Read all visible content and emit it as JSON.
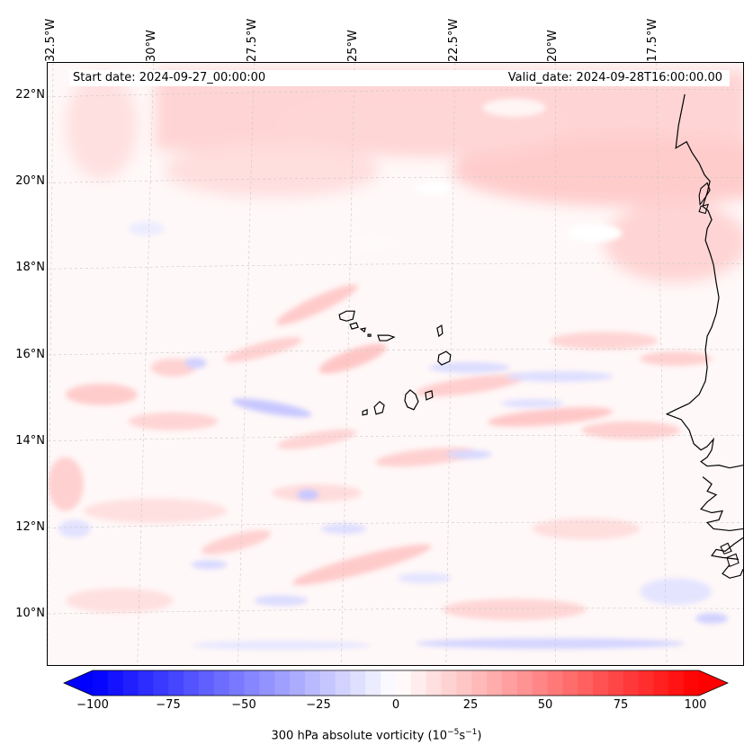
{
  "map": {
    "title_left": "Start date: 2024-09-27_00:00:00",
    "title_right": "Valid_date: 2024-09-28T16:00:00.00",
    "projection": "Lambert / conic",
    "longitude_labels": [
      "32.5°W",
      "30°W",
      "27.5°W",
      "25°W",
      "22.5°W",
      "20°W",
      "17.5°W"
    ],
    "latitude_labels": [
      "22°N",
      "20°N",
      "18°N",
      "16°N",
      "14°N",
      "12°N",
      "10°N"
    ],
    "features": {
      "coastline": "West Africa coastline",
      "islands": "Cape Verde Islands"
    }
  },
  "colorbar": {
    "min": -100,
    "max": 100,
    "ticks": [
      "−100",
      "−75",
      "−50",
      "−25",
      "0",
      "25",
      "50",
      "75",
      "100"
    ],
    "label_main": "300 hPa absolute vorticity (10",
    "label_exp1": "−5",
    "label_mid": "s",
    "label_exp2": "−1",
    "label_end": ")",
    "extend": "both",
    "low_color": "#0000ff",
    "mid_color": "#ffffff",
    "high_color": "#ff0000"
  }
}
